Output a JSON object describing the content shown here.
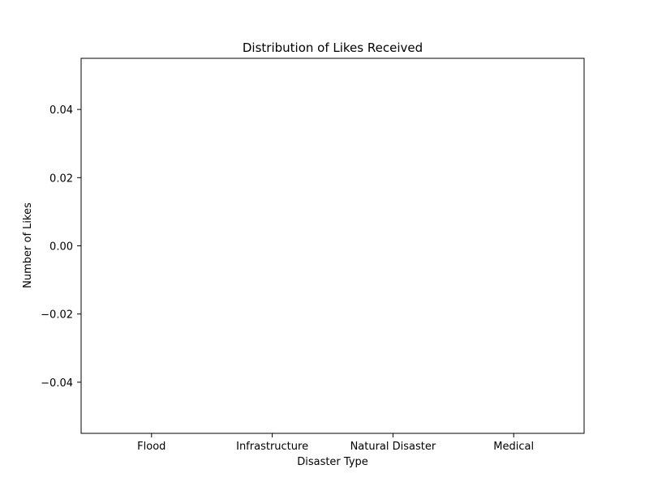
{
  "chart_data": {
    "type": "box",
    "title": "Distribution of Likes Received",
    "xlabel": "Disaster Type",
    "ylabel": "Number of Likes",
    "categories": [
      "Flood",
      "Infrastructure",
      "Natural Disaster",
      "Medical"
    ],
    "values": [],
    "ylim": [
      -0.055,
      0.055
    ],
    "yticks": [
      0.04,
      0.02,
      0.0,
      -0.02,
      -0.04
    ],
    "ytick_labels": [
      "0.04",
      "0.02",
      "0.00",
      "−0.02",
      "−0.04"
    ],
    "grid": false,
    "legend": "none",
    "colors": {
      "axes": "#000000",
      "background": "#ffffff"
    }
  }
}
